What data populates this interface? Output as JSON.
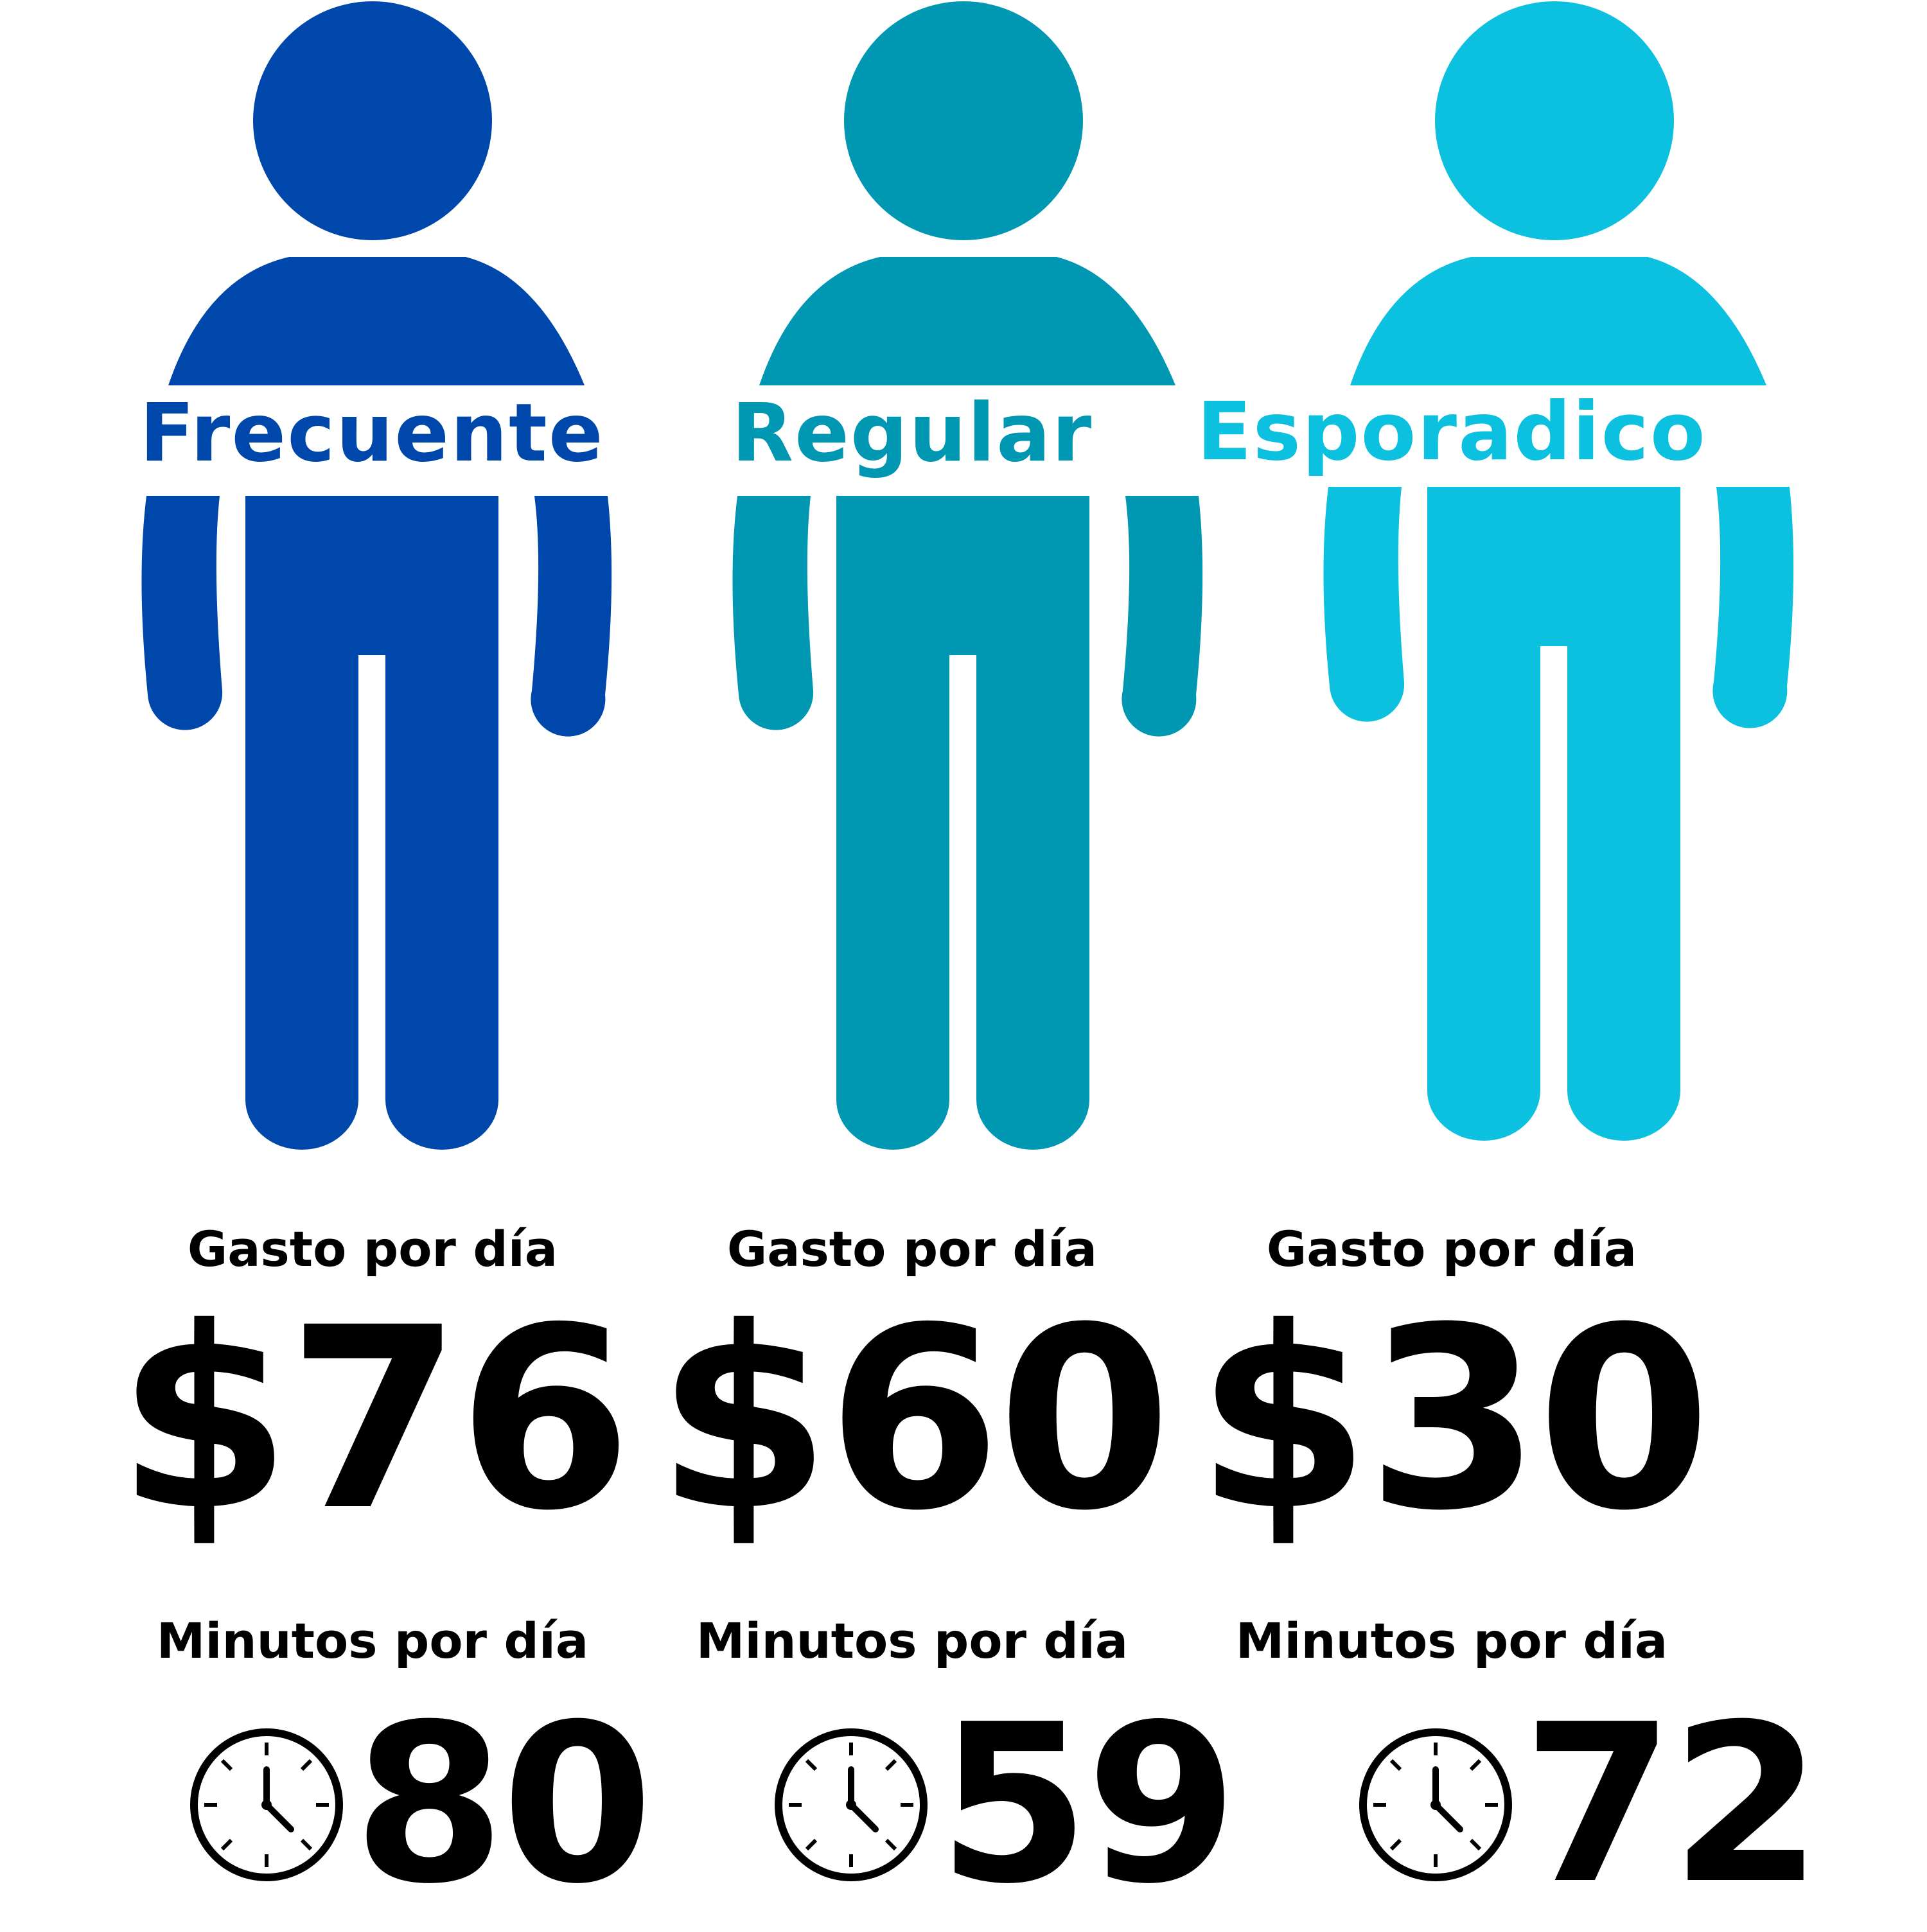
{
  "segments": [
    {
      "label": "Frecuente",
      "color": "#0047ab",
      "gasto_title": "Gasto por día",
      "gasto_value": "$76",
      "minutos_title": "Minutos por día",
      "minutos_value": "80",
      "icon": "clock-icon"
    },
    {
      "label": "Regular",
      "color": "#0097b2",
      "gasto_title": "Gasto por día",
      "gasto_value": "$60",
      "minutos_title": "Minutos por día",
      "minutos_value": "59",
      "icon": "clock-icon"
    },
    {
      "label": "Esporadico",
      "color": "#0cc0df",
      "gasto_title": "Gasto por día",
      "gasto_value": "$30",
      "minutos_title": "Minutos por día",
      "minutos_value": "72",
      "icon": "clock-icon"
    }
  ]
}
